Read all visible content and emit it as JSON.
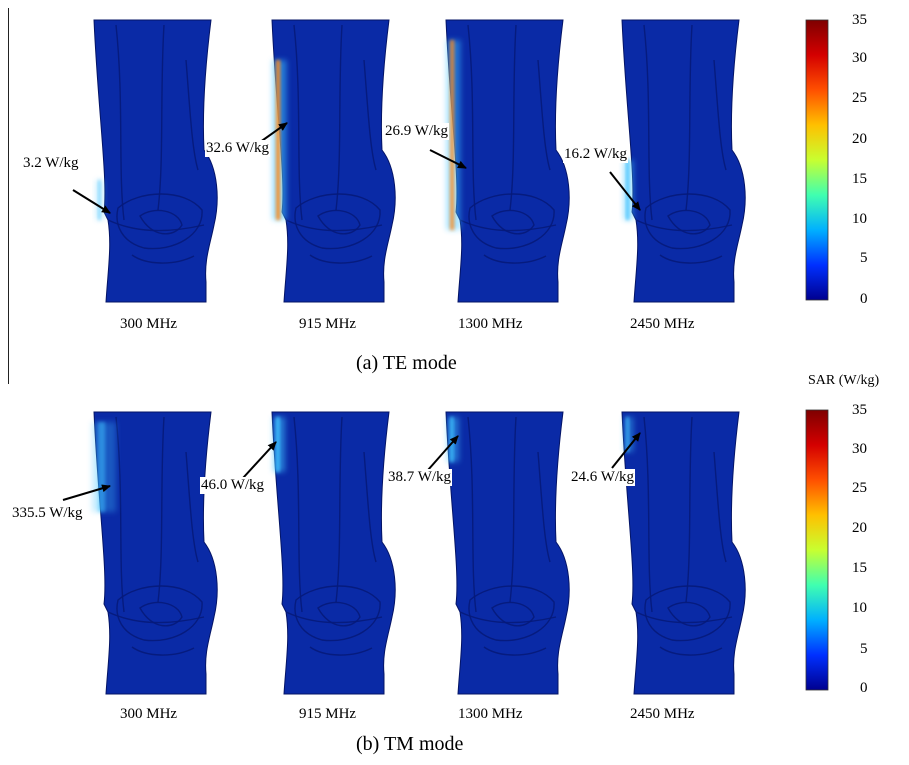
{
  "panels": [
    {
      "caption": "(a)  TE mode",
      "items": [
        {
          "freq": "300 MHz",
          "annotation": "3.2 W/kg"
        },
        {
          "freq": "915 MHz",
          "annotation": "32.6 W/kg"
        },
        {
          "freq": "1300 MHz",
          "annotation": "26.9 W/kg"
        },
        {
          "freq": "2450 MHz",
          "annotation": "16.2 W/kg"
        }
      ]
    },
    {
      "caption": "(b)  TM mode",
      "items": [
        {
          "freq": "300 MHz",
          "annotation": "335.5 W/kg"
        },
        {
          "freq": "915 MHz",
          "annotation": "46.0 W/kg"
        },
        {
          "freq": "1300 MHz",
          "annotation": "38.7 W/kg"
        },
        {
          "freq": "2450 MHz",
          "annotation": "24.6 W/kg"
        }
      ]
    }
  ],
  "colorbar": {
    "label": "SAR (W/kg)",
    "ticks": [
      "35",
      "30",
      "25",
      "20",
      "15",
      "10",
      "5",
      "0"
    ],
    "colors": [
      "#7f0000",
      "#d40000",
      "#ff5000",
      "#ffc000",
      "#c8ff30",
      "#40ffb0",
      "#00b0ff",
      "#0030ff",
      "#00008f"
    ]
  },
  "colors": {
    "tissue": "#0a2aa6",
    "tissue_dark": "#061a7a",
    "hotspot_light": "#3fc3ff",
    "hotspot_warm": "#ff8a1a"
  }
}
